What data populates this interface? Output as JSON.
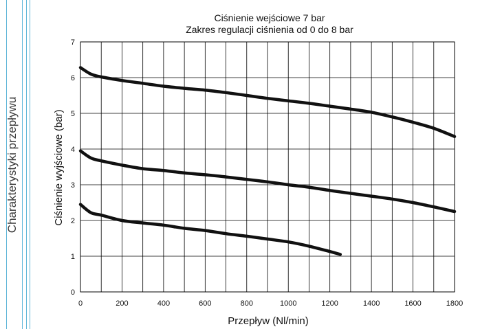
{
  "side_title": "Charakterystyki przepływu",
  "colors": {
    "rule": "#5fb6d8",
    "series": "#111111",
    "grid": "#000000"
  },
  "chart_data": {
    "type": "line",
    "title": "Ciśnienie wejściowe 7 bar",
    "subtitle": "Zakres regulacji ciśnienia od 0 do 8 bar",
    "xlabel": "Przepływ (Nl/min)",
    "ylabel": "Ciśnienie wyjściowe (bar)",
    "xlim": [
      0,
      1800
    ],
    "ylim": [
      0,
      7
    ],
    "xticks": [
      0,
      200,
      400,
      600,
      800,
      1000,
      1200,
      1400,
      1600,
      1800
    ],
    "yticks": [
      0,
      1,
      2,
      3,
      4,
      5,
      6,
      7
    ],
    "x_grid_step": 100,
    "grid": true,
    "series": [
      {
        "x": [
          0,
          50,
          100,
          200,
          300,
          400,
          500,
          600,
          700,
          800,
          900,
          1000,
          1100,
          1200,
          1300,
          1400,
          1500,
          1600,
          1700,
          1800
        ],
        "y": [
          6.28,
          6.1,
          6.02,
          5.92,
          5.84,
          5.76,
          5.7,
          5.65,
          5.58,
          5.5,
          5.42,
          5.35,
          5.28,
          5.2,
          5.12,
          5.03,
          4.9,
          4.75,
          4.58,
          4.35
        ]
      },
      {
        "x": [
          0,
          50,
          100,
          200,
          300,
          400,
          500,
          600,
          700,
          800,
          900,
          1000,
          1100,
          1200,
          1300,
          1400,
          1500,
          1600,
          1700,
          1800
        ],
        "y": [
          3.95,
          3.75,
          3.67,
          3.55,
          3.45,
          3.4,
          3.33,
          3.28,
          3.22,
          3.15,
          3.08,
          3.0,
          2.93,
          2.84,
          2.76,
          2.68,
          2.6,
          2.5,
          2.38,
          2.25
        ]
      },
      {
        "x": [
          0,
          50,
          100,
          200,
          300,
          400,
          500,
          600,
          700,
          800,
          900,
          1000,
          1100,
          1200,
          1250
        ],
        "y": [
          2.45,
          2.22,
          2.15,
          2.0,
          1.93,
          1.87,
          1.78,
          1.72,
          1.63,
          1.56,
          1.48,
          1.4,
          1.28,
          1.13,
          1.05
        ]
      }
    ]
  }
}
